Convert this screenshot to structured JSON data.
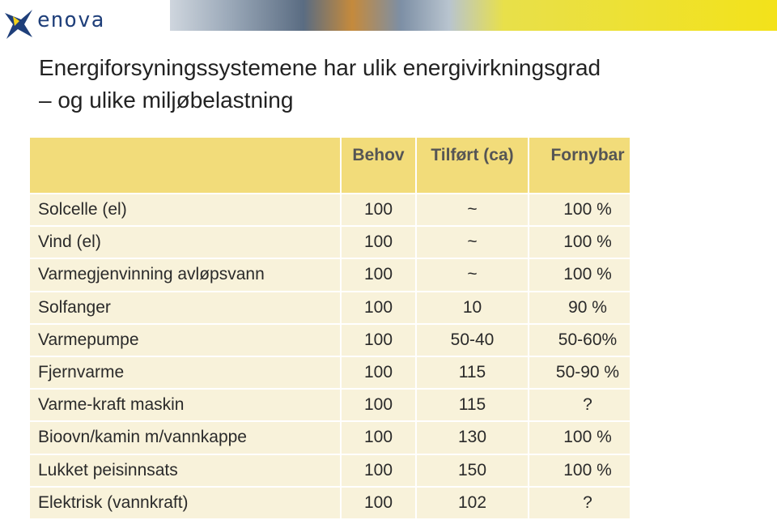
{
  "logo": "enova",
  "title": [
    "Energiforsyningssystemene har ulik energivirkningsgrad",
    "– og ulike miljøbelastning"
  ],
  "table": {
    "header": [
      "Behov",
      "Tilført (ca)",
      "Fornybar"
    ],
    "rows": [
      [
        "Solcelle (el)",
        "100",
        "~",
        "100 %"
      ],
      [
        "Vind (el)",
        "100",
        "~",
        "100 %"
      ],
      [
        "Varmegjenvinning avløpsvann",
        "100",
        "~",
        "100 %"
      ],
      [
        "Solfanger",
        "100",
        "10",
        "90 %"
      ],
      [
        "Varmepumpe",
        "100",
        "50-40",
        "50-60%"
      ],
      [
        "Fjernvarme",
        "100",
        "115",
        "50-90 %"
      ],
      [
        "Varme-kraft maskin",
        "100",
        "115",
        "?"
      ],
      [
        "Bioovn/kamin m/vannkappe",
        "100",
        "130",
        "100 %"
      ],
      [
        "Lukket peisinnsats",
        "100",
        "150",
        "100 %"
      ],
      [
        "Elektrisk (vannkraft)",
        "100",
        "102",
        "?"
      ]
    ]
  }
}
